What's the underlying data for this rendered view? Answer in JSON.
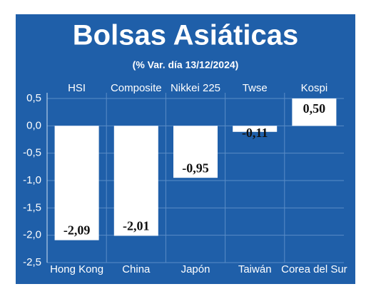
{
  "chart_data": {
    "type": "bar",
    "title": "Bolsas Asiáticas",
    "subtitle": "(% Var. día 13/12/2024)",
    "index_names": [
      "HSI",
      "Composite",
      "Nikkei 225",
      "Twse",
      "Kospi"
    ],
    "categories": [
      "Hong Kong",
      "China",
      "Japón",
      "Taiwán",
      "Corea del Sur"
    ],
    "values": [
      -2.09,
      -2.01,
      -0.95,
      -0.11,
      0.5
    ],
    "value_labels": [
      "-2,09",
      "-2,01",
      "-0,95",
      "-0,11",
      "0,50"
    ],
    "color": "#ffffff",
    "ylim": [
      -2.5,
      0.5
    ],
    "yticks": [
      {
        "value": 0.5,
        "label": "0,5"
      },
      {
        "value": 0,
        "label": "0,0"
      },
      {
        "value": -0.5,
        "label": "-0,5"
      },
      {
        "value": -1,
        "label": "-1,0"
      },
      {
        "value": -1.5,
        "label": "-1,5"
      },
      {
        "value": -2,
        "label": "-2,0"
      },
      {
        "value": -2.5,
        "label": "-2,5"
      }
    ],
    "grid": true
  }
}
